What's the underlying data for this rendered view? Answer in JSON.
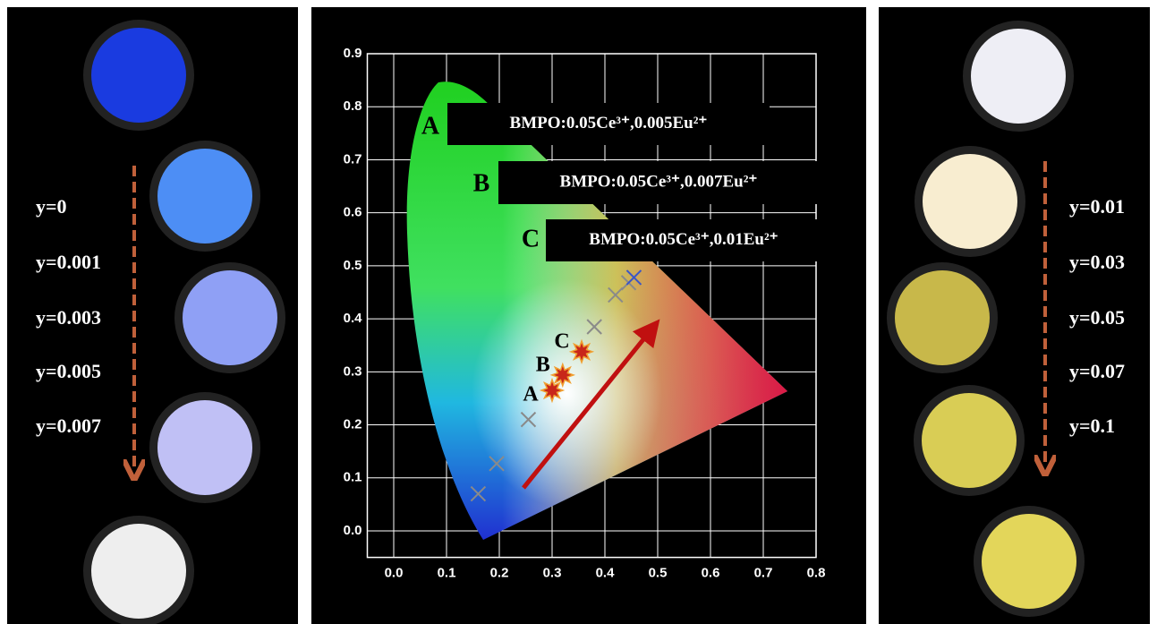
{
  "chart_data": {
    "type": "scatter",
    "xlim": [
      -0.05,
      0.8
    ],
    "ylim": [
      -0.05,
      0.9
    ],
    "xticks": [
      {
        "value": 0,
        "label": "0.0"
      },
      0.1,
      0.2,
      0.3,
      0.4,
      0.5,
      0.6,
      0.7,
      0.8
    ],
    "yticks": [
      {
        "value": 0,
        "label": "0.0"
      },
      0.1,
      0.2,
      0.3,
      0.4,
      0.5,
      0.6,
      0.7,
      0.8,
      0.9
    ],
    "grid": true,
    "series": [
      {
        "marker": "x",
        "color": "#8a8a8a",
        "x": [
          0.16,
          0.195,
          0.255,
          0.38,
          0.42,
          0.445
        ],
        "values": [
          0.07,
          0.127,
          0.21,
          0.385,
          0.445,
          0.468
        ]
      },
      {
        "marker": "x",
        "color": "#3a55c8",
        "x": [
          0.455
        ],
        "values": [
          0.478
        ]
      },
      {
        "marker": "star",
        "color": "#c8261a",
        "x": [
          0.3,
          0.32,
          0.356
        ],
        "values": [
          0.265,
          0.294,
          0.338
        ],
        "point_labels": [
          "A",
          "B",
          "C"
        ]
      }
    ],
    "annotations": [
      {
        "letter": "A",
        "text": "BMPO:0.05Ce³⁺,0.005Eu²⁺"
      },
      {
        "letter": "B",
        "text": "BMPO:0.05Ce³⁺,0.007Eu²⁺"
      },
      {
        "letter": "C",
        "text": "BMPO:0.05Ce³⁺,0.01Eu²⁺"
      }
    ]
  },
  "left_panel": {
    "labels": [
      "y=0",
      "y=0.001",
      "y=0.003",
      "y=0.005",
      "y=0.007"
    ]
  },
  "right_panel": {
    "labels": [
      "y=0.01",
      "y=0.03",
      "y=0.05",
      "y=0.07",
      "y=0.1"
    ]
  }
}
